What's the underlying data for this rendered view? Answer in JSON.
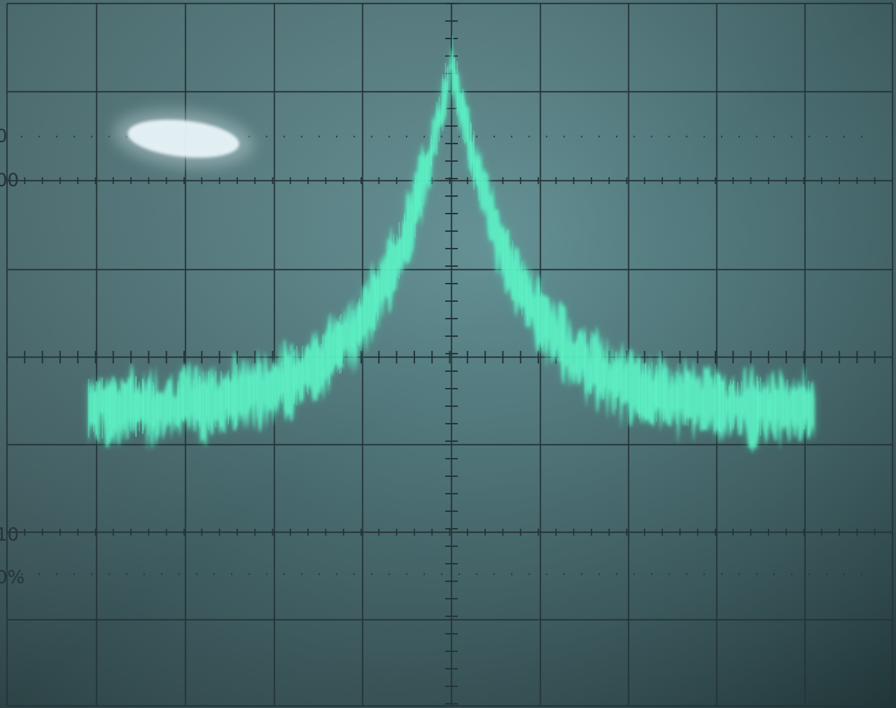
{
  "scope": {
    "graticule": {
      "divisions_x": 10,
      "divisions_y": 8,
      "minor_ticks_per_division": 5,
      "percent_labels": [
        "0",
        "00",
        "10",
        "0%"
      ]
    },
    "colors": {
      "screen_background": "#2c4a4e",
      "graticule_line": "#243438",
      "trace_phosphor": "#5ff2c6",
      "trace_glow": "#3fd9b0",
      "reflection_highlight": "#f4fbff"
    },
    "trace": {
      "description_shape": "peak",
      "x_range_divisions": [
        -4.1,
        4.1
      ],
      "baseline_level_divisions": -0.6,
      "peak_level_divisions": 3.4,
      "band_width_divisions": 0.55
    }
  }
}
